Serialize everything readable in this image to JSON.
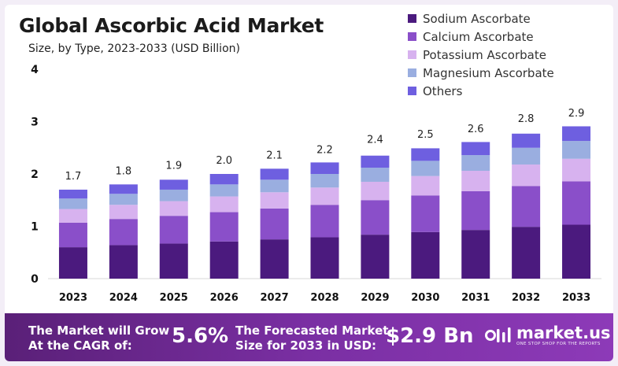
{
  "chart_data": {
    "type": "bar",
    "stacked": true,
    "title": "Global Ascorbic Acid Market",
    "subtitle": "Size, by Type, 2023-2033 (USD Billion)",
    "categories": [
      "2023",
      "2024",
      "2025",
      "2026",
      "2027",
      "2028",
      "2029",
      "2030",
      "2031",
      "2032",
      "2033"
    ],
    "totals": [
      "1.7",
      "1.8",
      "1.9",
      "2.0",
      "2.1",
      "2.2",
      "2.4",
      "2.5",
      "2.6",
      "2.8",
      "2.9"
    ],
    "series": [
      {
        "name": "Sodium Ascorbate",
        "color": "#4b1a7e",
        "values": [
          0.6,
          0.64,
          0.67,
          0.71,
          0.75,
          0.79,
          0.84,
          0.89,
          0.93,
          0.99,
          1.03
        ]
      },
      {
        "name": "Calcium Ascorbate",
        "color": "#8a4fc9",
        "values": [
          0.47,
          0.5,
          0.53,
          0.56,
          0.59,
          0.62,
          0.66,
          0.7,
          0.74,
          0.78,
          0.83
        ]
      },
      {
        "name": "Potassium Ascorbate",
        "color": "#d7b2ef",
        "values": [
          0.26,
          0.27,
          0.28,
          0.3,
          0.31,
          0.33,
          0.35,
          0.37,
          0.39,
          0.41,
          0.43
        ]
      },
      {
        "name": "Magnesium Ascorbate",
        "color": "#9aaee0",
        "values": [
          0.2,
          0.21,
          0.22,
          0.23,
          0.24,
          0.26,
          0.27,
          0.29,
          0.3,
          0.32,
          0.34
        ]
      },
      {
        "name": "Others",
        "color": "#6e5fe0",
        "values": [
          0.17,
          0.18,
          0.19,
          0.2,
          0.21,
          0.22,
          0.23,
          0.24,
          0.25,
          0.27,
          0.28
        ]
      }
    ],
    "yticks": [
      "0",
      "1",
      "2",
      "3",
      "4"
    ],
    "ylim": [
      0,
      4
    ],
    "legend_position": "top-right",
    "grid": false
  },
  "banner": {
    "cagr_label_line1": "The Market will Grow",
    "cagr_label_line2": "At the CAGR of:",
    "cagr_value": "5.6%",
    "forecast_label_line1": "The Forecasted Market",
    "forecast_label_line2": "Size for 2033 in USD:",
    "forecast_value": "$2.9 Bn",
    "brand_name": "market.us",
    "brand_tagline": "ONE STOP SHOP FOR THE REPORTS"
  }
}
